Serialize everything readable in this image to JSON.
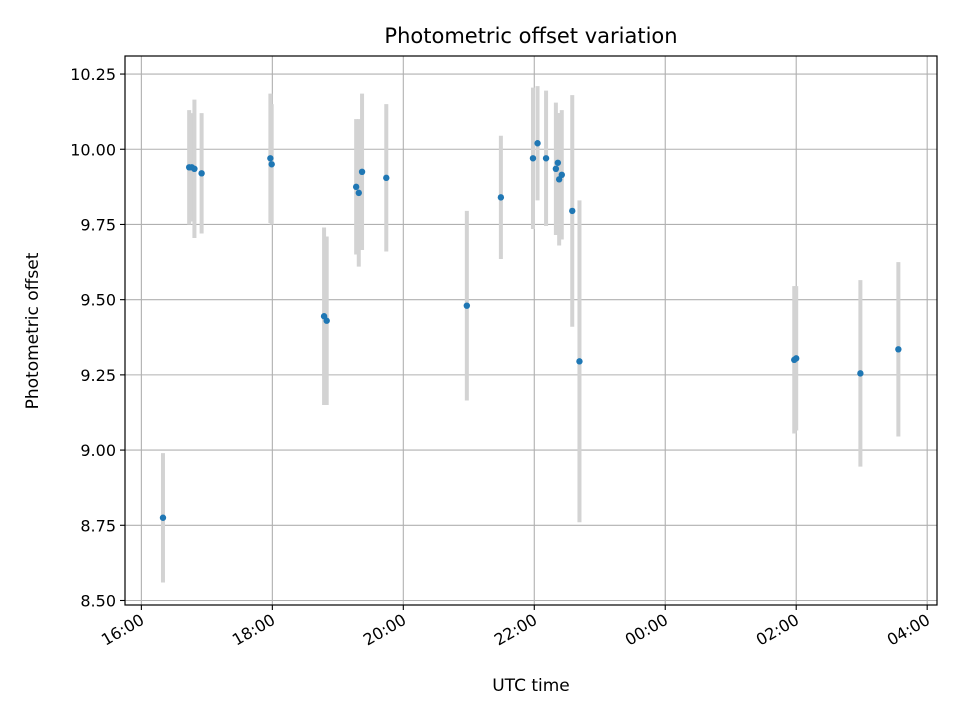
{
  "chart_data": {
    "type": "scatter",
    "title": "Photometric offset variation",
    "xlabel": "UTC time",
    "ylabel": "Photometric offset",
    "x_unit": "hours since 16:00 UTC",
    "xlim": [
      -0.25,
      12.15
    ],
    "ylim": [
      8.485,
      10.31
    ],
    "grid": true,
    "x_ticks": [
      {
        "value": 0,
        "label": "16:00"
      },
      {
        "value": 2,
        "label": "18:00"
      },
      {
        "value": 4,
        "label": "20:00"
      },
      {
        "value": 6,
        "label": "22:00"
      },
      {
        "value": 8,
        "label": "00:00"
      },
      {
        "value": 10,
        "label": "02:00"
      },
      {
        "value": 12,
        "label": "04:00"
      }
    ],
    "y_ticks": [
      {
        "value": 8.5,
        "label": "8.50"
      },
      {
        "value": 8.75,
        "label": "8.75"
      },
      {
        "value": 9.0,
        "label": "9.00"
      },
      {
        "value": 9.25,
        "label": "9.25"
      },
      {
        "value": 9.5,
        "label": "9.50"
      },
      {
        "value": 9.75,
        "label": "9.75"
      },
      {
        "value": 10.0,
        "label": "10.00"
      },
      {
        "value": 10.25,
        "label": "10.25"
      }
    ],
    "marker_color": "#1f77b4",
    "errorbar_color": "#d3d3d3",
    "points": [
      {
        "x": 0.33,
        "y": 8.775,
        "err": 0.215
      },
      {
        "x": 0.73,
        "y": 9.94,
        "err": 0.19
      },
      {
        "x": 0.77,
        "y": 9.94,
        "err": 0.18
      },
      {
        "x": 0.81,
        "y": 9.935,
        "err": 0.23
      },
      {
        "x": 0.92,
        "y": 9.92,
        "err": 0.2
      },
      {
        "x": 1.97,
        "y": 9.97,
        "err": 0.215
      },
      {
        "x": 1.99,
        "y": 9.95,
        "err": 0.2
      },
      {
        "x": 2.79,
        "y": 9.445,
        "err": 0.295
      },
      {
        "x": 2.83,
        "y": 9.43,
        "err": 0.28
      },
      {
        "x": 3.28,
        "y": 9.875,
        "err": 0.225
      },
      {
        "x": 3.32,
        "y": 9.855,
        "err": 0.245
      },
      {
        "x": 3.37,
        "y": 9.925,
        "err": 0.26
      },
      {
        "x": 3.74,
        "y": 9.905,
        "err": 0.245
      },
      {
        "x": 4.97,
        "y": 9.48,
        "err": 0.315
      },
      {
        "x": 5.49,
        "y": 9.84,
        "err": 0.205
      },
      {
        "x": 5.98,
        "y": 9.97,
        "err": 0.235
      },
      {
        "x": 6.05,
        "y": 10.02,
        "err": 0.19
      },
      {
        "x": 6.18,
        "y": 9.97,
        "err": 0.225
      },
      {
        "x": 6.33,
        "y": 9.935,
        "err": 0.22
      },
      {
        "x": 6.36,
        "y": 9.955,
        "err": 0.165
      },
      {
        "x": 6.38,
        "y": 9.9,
        "err": 0.22
      },
      {
        "x": 6.42,
        "y": 9.915,
        "err": 0.215
      },
      {
        "x": 6.58,
        "y": 9.795,
        "err": 0.385
      },
      {
        "x": 6.69,
        "y": 9.295,
        "err": 0.535
      },
      {
        "x": 9.97,
        "y": 9.3,
        "err": 0.245
      },
      {
        "x": 10.0,
        "y": 9.305,
        "err": 0.24
      },
      {
        "x": 10.98,
        "y": 9.255,
        "err": 0.31
      },
      {
        "x": 11.56,
        "y": 9.335,
        "err": 0.29
      }
    ]
  }
}
